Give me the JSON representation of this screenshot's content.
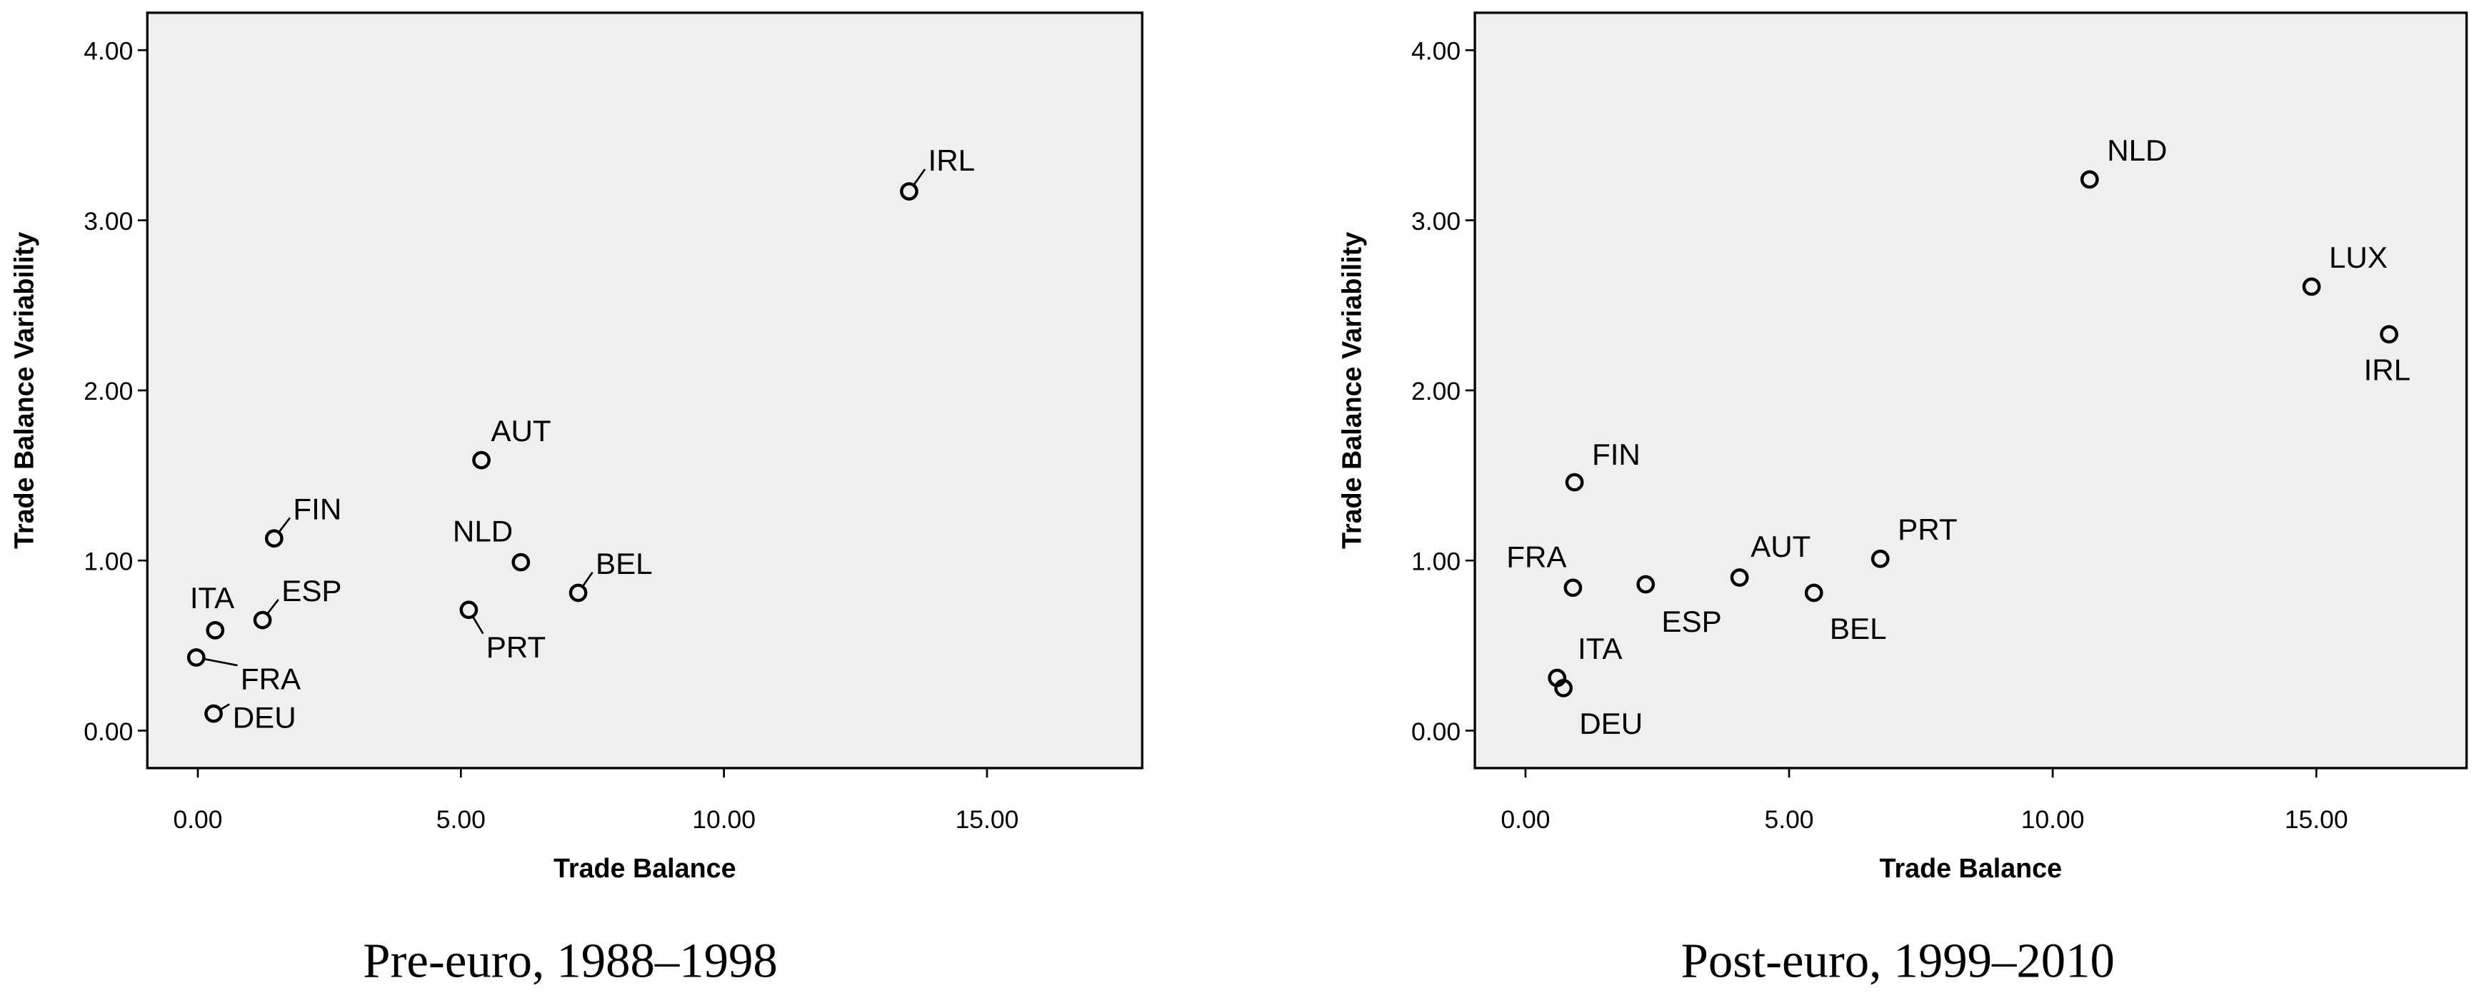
{
  "chart_data": [
    {
      "type": "scatter",
      "subtitle": "Pre-euro, 1988–1998",
      "xlabel": "Trade Balance",
      "ylabel": "Trade Balance Variability",
      "labels": [
        "IRL",
        "AUT",
        "FIN",
        "NLD",
        "BEL",
        "ESP",
        "ITA",
        "PRT",
        "FRA",
        "DEU"
      ],
      "x": [
        13.52,
        5.39,
        1.45,
        6.14,
        7.23,
        1.23,
        0.33,
        5.15,
        -0.03,
        0.3
      ],
      "y": [
        3.17,
        1.59,
        1.13,
        0.99,
        0.81,
        0.65,
        0.59,
        0.71,
        0.43,
        0.1
      ],
      "color": "#000000",
      "xlim": [
        -0.96,
        17.95
      ],
      "ylim": [
        -0.22,
        4.22
      ],
      "xticks": [
        {
          "value": 0,
          "label": "0.00"
        },
        {
          "value": 5,
          "label": "5.00"
        },
        {
          "value": 10,
          "label": "10.00"
        },
        {
          "value": 15,
          "label": "15.00"
        }
      ],
      "yticks": [
        {
          "value": 0,
          "label": "0.00"
        },
        {
          "value": 1,
          "label": "1.00"
        },
        {
          "value": 2,
          "label": "2.00"
        },
        {
          "value": 3,
          "label": "3.00"
        },
        {
          "value": 4,
          "label": "4.00"
        }
      ]
    },
    {
      "type": "scatter",
      "subtitle": "Post-euro, 1999–2010",
      "xlabel": "Trade Balance",
      "ylabel": "Trade Balance Variability",
      "labels": [
        "NLD",
        "LUX",
        "IRL",
        "FIN",
        "PRT",
        "AUT",
        "FRA",
        "ESP",
        "BEL",
        "ITA",
        "DEU"
      ],
      "x": [
        10.7,
        14.91,
        16.38,
        0.93,
        6.73,
        4.06,
        0.9,
        2.28,
        5.47,
        0.6,
        0.72
      ],
      "y": [
        3.24,
        2.61,
        2.33,
        1.46,
        1.01,
        0.9,
        0.84,
        0.86,
        0.81,
        0.31,
        0.25
      ],
      "color": "#000000",
      "xlim": [
        -0.96,
        17.85
      ],
      "ylim": [
        -0.22,
        4.22
      ],
      "xticks": [
        {
          "value": 0,
          "label": "0.00"
        },
        {
          "value": 5,
          "label": "5.00"
        },
        {
          "value": 10,
          "label": "10.00"
        },
        {
          "value": 15,
          "label": "15.00"
        }
      ],
      "yticks": [
        {
          "value": 0,
          "label": "0.00"
        },
        {
          "value": 1,
          "label": "1.00"
        },
        {
          "value": 2,
          "label": "2.00"
        },
        {
          "value": 3,
          "label": "3.00"
        },
        {
          "value": 4,
          "label": "4.00"
        }
      ]
    }
  ]
}
